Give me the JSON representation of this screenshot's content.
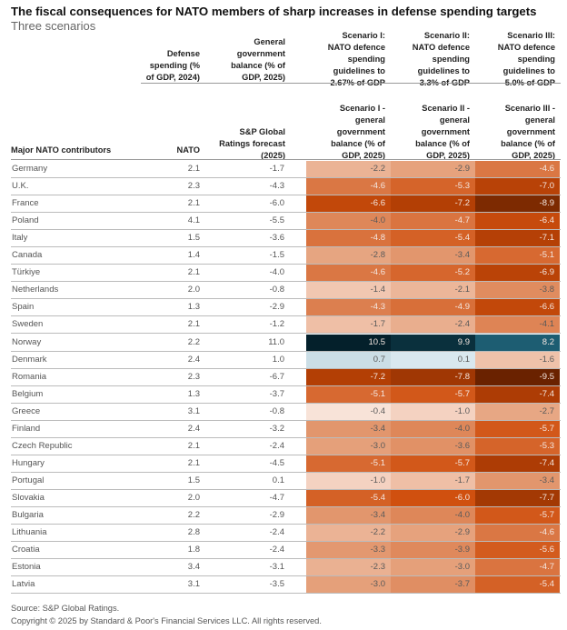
{
  "chart_data": {
    "type": "table",
    "title": "The fiscal consequences for NATO members of sharp increases in defense spending targets",
    "subtitle": "Three scenarios",
    "group_headers": [
      "Defense spending (% of GDP, 2024)",
      "General government balance (% of GDP, 2025)",
      "Scenario I: NATO defence spending guidelines to 2.67% of GDP",
      "Scenario II: NATO defence spending guidelines to 3.3% of GDP",
      "Scenario III: NATO defence spending guidelines to 5.0% of GDP"
    ],
    "columns": [
      "Major NATO contributors",
      "NATO",
      "S&P Global Ratings forecast (2025)",
      "Scenario I - general government balance (% of GDP, 2025)",
      "Scenario II - general government balance (% of GDP, 2025)",
      "Scenario III - general government balance (% of GDP, 2025)"
    ],
    "rows": [
      [
        "Germany",
        "2.1",
        "-1.7",
        "-2.2",
        "-2.9",
        "-4.6"
      ],
      [
        "U.K.",
        "2.3",
        "-4.3",
        "-4.6",
        "-5.3",
        "-7.0"
      ],
      [
        "France",
        "2.1",
        "-6.0",
        "-6.6",
        "-7.2",
        "-8.9"
      ],
      [
        "Poland",
        "4.1",
        "-5.5",
        "-4.0",
        "-4.7",
        "-6.4"
      ],
      [
        "Italy",
        "1.5",
        "-3.6",
        "-4.8",
        "-5.4",
        "-7.1"
      ],
      [
        "Canada",
        "1.4",
        "-1.5",
        "-2.8",
        "-3.4",
        "-5.1"
      ],
      [
        "Türkiye",
        "2.1",
        "-4.0",
        "-4.6",
        "-5.2",
        "-6.9"
      ],
      [
        "Netherlands",
        "2.0",
        "-0.8",
        "-1.4",
        "-2.1",
        "-3.8"
      ],
      [
        "Spain",
        "1.3",
        "-2.9",
        "-4.3",
        "-4.9",
        "-6.6"
      ],
      [
        "Sweden",
        "2.1",
        "-1.2",
        "-1.7",
        "-2.4",
        "-4.1"
      ],
      [
        "Norway",
        "2.2",
        "11.0",
        "10.5",
        "9.9",
        "8.2"
      ],
      [
        "Denmark",
        "2.4",
        "1.0",
        "0.7",
        "0.1",
        "-1.6"
      ],
      [
        "Romania",
        "2.3",
        "-6.7",
        "-7.2",
        "-7.8",
        "-9.5"
      ],
      [
        "Belgium",
        "1.3",
        "-3.7",
        "-5.1",
        "-5.7",
        "-7.4"
      ],
      [
        "Greece",
        "3.1",
        "-0.8",
        "-0.4",
        "-1.0",
        "-2.7"
      ],
      [
        "Finland",
        "2.4",
        "-3.2",
        "-3.4",
        "-4.0",
        "-5.7"
      ],
      [
        "Czech Republic",
        "2.1",
        "-2.4",
        "-3.0",
        "-3.6",
        "-5.3"
      ],
      [
        "Hungary",
        "2.1",
        "-4.5",
        "-5.1",
        "-5.7",
        "-7.4"
      ],
      [
        "Portugal",
        "1.5",
        "0.1",
        "-1.0",
        "-1.7",
        "-3.4"
      ],
      [
        "Slovakia",
        "2.0",
        "-4.7",
        "-5.4",
        "-6.0",
        "-7.7"
      ],
      [
        "Bulgaria",
        "2.2",
        "-2.9",
        "-3.4",
        "-4.0",
        "-5.7"
      ],
      [
        "Lithuania",
        "2.8",
        "-2.4",
        "-2.2",
        "-2.9",
        "-4.6"
      ],
      [
        "Croatia",
        "1.8",
        "-2.4",
        "-3.3",
        "-3.9",
        "-5.6"
      ],
      [
        "Estonia",
        "3.4",
        "-3.1",
        "-2.3",
        "-3.0",
        "-4.7"
      ],
      [
        "Latvia",
        "3.1",
        "-3.5",
        "-3.0",
        "-3.7",
        "-5.4"
      ]
    ],
    "color_scale": {
      "negative": [
        "#fbeee8",
        "#f0c4ad",
        "#e5a07a",
        "#db7a48",
        "#d0500f",
        "#b33f05",
        "#6a2200"
      ],
      "positive": [
        "#dbeaf1",
        "#1f6278",
        "#04202b"
      ]
    }
  },
  "footer": {
    "source": "Source: S&P Global Ratings.",
    "copyright": "Copyright © 2025 by Standard & Poor's Financial Services LLC. All rights reserved."
  }
}
